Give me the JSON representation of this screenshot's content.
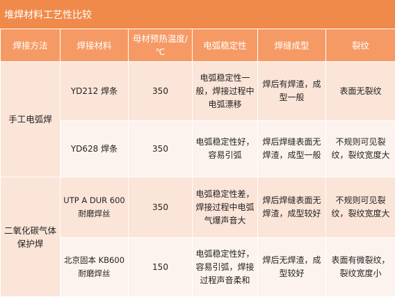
{
  "title": "堆焊材料工艺性比较",
  "headers": {
    "method": "焊接方法",
    "material": "焊接材料",
    "preheat": "母材预热温度/℃",
    "arc": "电弧稳定性",
    "formation": "焊缝成型",
    "crack": "裂纹"
  },
  "groups": [
    {
      "method": "手工电弧焊",
      "rows": [
        {
          "material": "YD212 焊条",
          "preheat": "350",
          "arc": "电弧稳定性一般，焊接过程中电弧漂移",
          "formation": "焊后有焊渣，成型一般",
          "crack": "表面无裂纹"
        },
        {
          "material": "YD628 焊条",
          "preheat": "350",
          "arc": "电弧稳定性好，容易引弧",
          "formation": "焊后焊缝表面无焊渣，成型一般",
          "crack": "不规则可见裂纹，裂纹宽度大"
        }
      ]
    },
    {
      "method": "二氧化碳气体保护焊",
      "rows": [
        {
          "material": "UTP A DUR 600耐磨焊丝",
          "preheat": "350",
          "arc": "电弧稳定性差，焊接过程中电弧气爆声音大",
          "formation": "焊后焊缝表面无焊渣，成型较好",
          "crack": "不规则可见裂纹，裂纹宽度大"
        },
        {
          "material": "北京固本 KB600耐磨焊丝",
          "preheat": "150",
          "arc": "电弧稳定性好，容易引弧，焊接过程声音柔和",
          "formation": "焊后无焊渣，成型较好",
          "crack": "表面有微裂纹，裂纹宽度小"
        }
      ]
    }
  ]
}
